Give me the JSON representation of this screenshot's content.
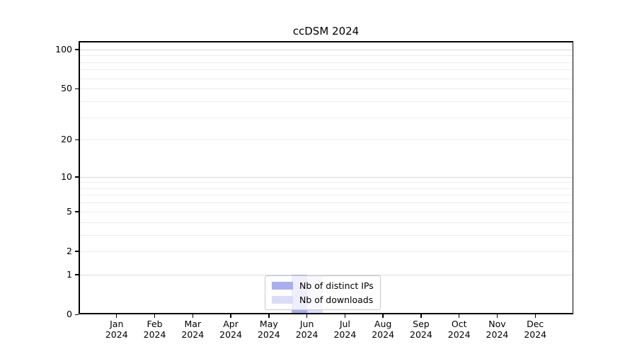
{
  "title": "ccDSM 2024",
  "colors": {
    "background": "#ffffff",
    "axis": "#000000",
    "text": "#000000",
    "grid_minor": "#ededed",
    "grid_major": "#d9d9d9",
    "legend_border": "#c9c9c9",
    "series_ips": "#a9aef0",
    "series_downloads": "#d9ddf7"
  },
  "chart_data": {
    "type": "bar",
    "title": "ccDSM 2024",
    "categories": [
      "Jan",
      "Feb",
      "Mar",
      "Apr",
      "May",
      "Jun",
      "Jul",
      "Aug",
      "Sep",
      "Oct",
      "Nov",
      "Dec"
    ],
    "year_label": "2024",
    "series": [
      {
        "name": "Nb of distinct IPs",
        "color": "#a9aef0",
        "values": [
          0,
          0,
          0,
          0,
          0,
          1,
          0,
          0,
          0,
          0,
          0,
          0
        ]
      },
      {
        "name": "Nb of downloads",
        "color": "#d9ddf7",
        "values": [
          0,
          0,
          0,
          0,
          0,
          1,
          0,
          0,
          0,
          0,
          0,
          0
        ]
      }
    ],
    "xlabel": "",
    "ylabel": "",
    "y_scale": "log1p",
    "y_ticks": [
      100,
      50,
      20,
      10,
      5,
      2,
      1,
      0
    ],
    "y_gridlines_major": [
      100,
      10,
      1
    ],
    "y_gridlines_minor": [
      90,
      80,
      70,
      60,
      50,
      40,
      30,
      20,
      9,
      8,
      7,
      6,
      5,
      4,
      3,
      2
    ],
    "ylim": [
      0,
      116
    ],
    "grid": true,
    "legend_position": "lower center"
  }
}
